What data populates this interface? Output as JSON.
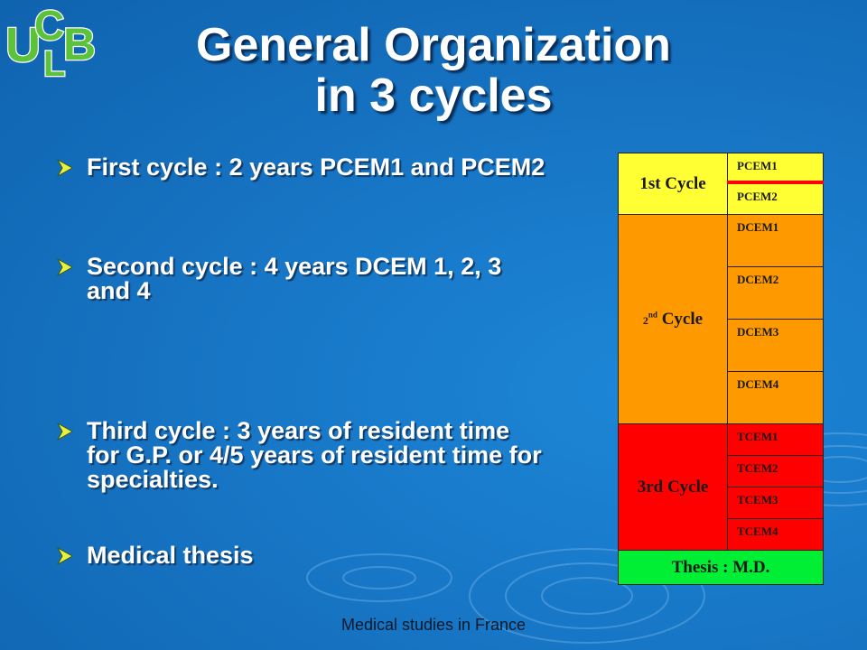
{
  "slide": {
    "title_line1": "General Organization",
    "title_line2": "in 3 cycles",
    "footer": "Medical studies in France",
    "logo_text": "UCLB"
  },
  "bullets": [
    "First cycle : 2 years PCEM1 and PCEM2",
    "Second cycle : 4 years DCEM 1, 2, 3 and 4",
    "Third cycle : 3 years of resident time for G.P. or 4/5 years of resident time for specialties.",
    "Medical thesis"
  ],
  "table": {
    "cycle1": {
      "label": "1st Cycle",
      "items": [
        "PCEM1",
        "PCEM2"
      ]
    },
    "cycle2": {
      "label_num": "2",
      "label_sup": "nd",
      "label_word": "Cycle",
      "items": [
        "DCEM1",
        "DCEM2",
        "DCEM3",
        "DCEM4"
      ]
    },
    "cycle3": {
      "label": "3rd Cycle",
      "items": [
        "TCEM1",
        "TCEM2",
        "TCEM3",
        "TCEM4"
      ]
    },
    "thesis": "Thesis : M.D."
  },
  "colors": {
    "background": "#1878c8",
    "cycle1": "#ffff33",
    "cycle2": "#ff9900",
    "cycle3": "#ff0000",
    "thesis": "#00ee33",
    "bullet_arrow": "#e8f040"
  }
}
